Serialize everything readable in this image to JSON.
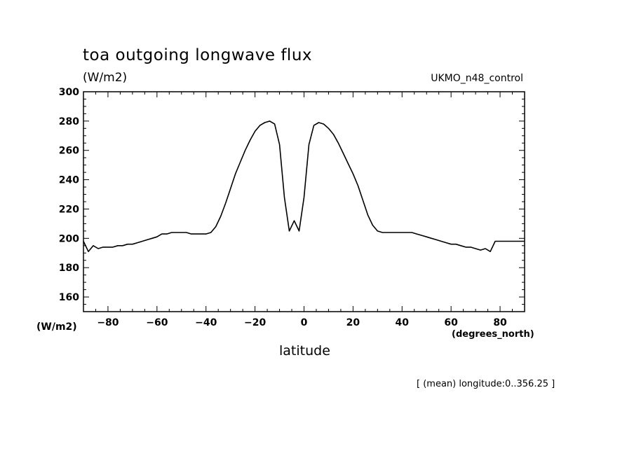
{
  "chart_data": {
    "type": "line",
    "title": "toa outgoing longwave flux",
    "units_top": "(W/m2)",
    "units_left": "(W/m2)",
    "run_label": "UKMO_n48_control",
    "xlabel": "latitude",
    "x_unit": "(degrees_north)",
    "footnote": "[ (mean) longitude:0..356.25 ]",
    "xlim": [
      -90,
      90
    ],
    "ylim": [
      150,
      300
    ],
    "x_ticks": [
      -80,
      -60,
      -40,
      -20,
      0,
      20,
      40,
      60,
      80
    ],
    "y_ticks": [
      160,
      180,
      200,
      220,
      240,
      260,
      280,
      300
    ],
    "grid": false,
    "series": [
      {
        "x": [
          -90,
          -88,
          -86,
          -84,
          -82,
          -80,
          -78,
          -76,
          -74,
          -72,
          -70,
          -68,
          -66,
          -64,
          -62,
          -60,
          -58,
          -56,
          -54,
          -52,
          -50,
          -48,
          -46,
          -44,
          -42,
          -40,
          -38,
          -36,
          -34,
          -32,
          -30,
          -28,
          -26,
          -24,
          -22,
          -20,
          -18,
          -16,
          -14,
          -12,
          -10,
          -8,
          -6,
          -4,
          -2,
          0,
          2,
          4,
          6,
          8,
          10,
          12,
          14,
          16,
          18,
          20,
          22,
          24,
          26,
          28,
          30,
          32,
          34,
          36,
          38,
          40,
          42,
          44,
          46,
          48,
          50,
          52,
          54,
          56,
          58,
          60,
          62,
          64,
          66,
          68,
          70,
          72,
          74,
          76,
          78,
          80,
          82,
          84,
          86,
          88,
          90
        ],
        "values": [
          198,
          191,
          195,
          193,
          194,
          194,
          194,
          195,
          195,
          196,
          196,
          197,
          198,
          199,
          200,
          201,
          203,
          203,
          204,
          204,
          204,
          204,
          203,
          203,
          203,
          203,
          204,
          208,
          215,
          224,
          234,
          244,
          252,
          260,
          267,
          273,
          277,
          279,
          280,
          278,
          264,
          228,
          205,
          212,
          205,
          228,
          264,
          277,
          279,
          278,
          275,
          271,
          265,
          258,
          251,
          244,
          236,
          226,
          216,
          209,
          205,
          204,
          204,
          204,
          204,
          204,
          204,
          204,
          203,
          202,
          201,
          200,
          199,
          198,
          197,
          196,
          196,
          195,
          194,
          194,
          193,
          192,
          193,
          191,
          198,
          198,
          198,
          198,
          198,
          198,
          198
        ]
      }
    ]
  }
}
